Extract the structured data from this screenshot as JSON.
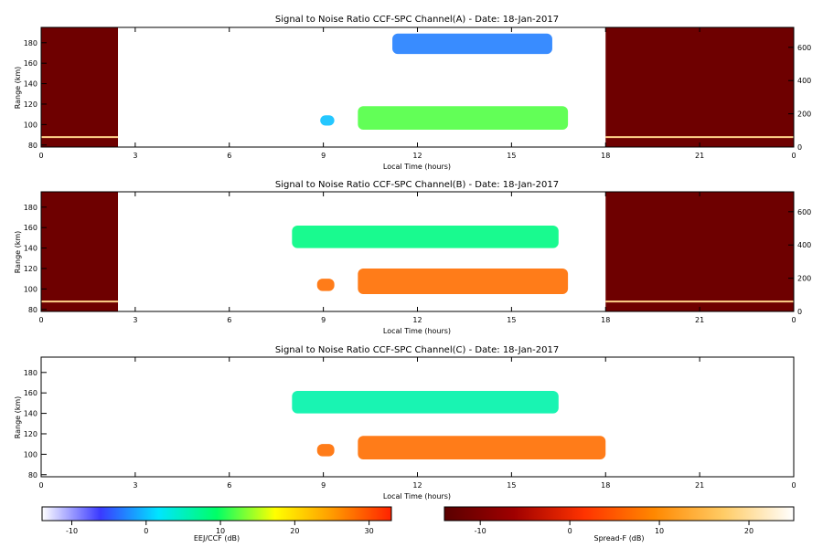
{
  "chart_data": [
    {
      "type": "heatmap",
      "title": "Signal to Noise Ratio CCF-SPC Channel(A) - Date: 18-Jan-2017",
      "xlabel": "Local Time (hours)",
      "ylabel": "Range (km)",
      "xlim": [
        0,
        24
      ],
      "ylim": [
        78,
        195
      ],
      "xticks": [
        "0",
        "3",
        "6",
        "9",
        "12",
        "15",
        "18",
        "21",
        "0"
      ],
      "yticks": [
        "80",
        "100",
        "120",
        "140",
        "160",
        "180"
      ],
      "y2lim": [
        0,
        720
      ],
      "y2ticks": [
        "0",
        "200",
        "400",
        "600"
      ],
      "spread_f_windows_hours": [
        [
          0,
          2.45
        ],
        [
          18,
          24
        ]
      ],
      "spread_f_echo_y2": 60,
      "features": [
        {
          "x": [
            8.9,
            9.35
          ],
          "y": [
            99,
            109
          ],
          "snr_db": 0
        },
        {
          "x": [
            10.1,
            16.8
          ],
          "y": [
            95,
            118
          ],
          "snr_db": 12
        },
        {
          "x": [
            11.2,
            16.3
          ],
          "y": [
            169,
            189
          ],
          "snr_db": -3
        }
      ]
    },
    {
      "type": "heatmap",
      "title": "Signal to Noise Ratio CCF-SPC Channel(B) - Date: 18-Jan-2017",
      "xlabel": "Local Time (hours)",
      "ylabel": "Range (km)",
      "xlim": [
        0,
        24
      ],
      "ylim": [
        78,
        195
      ],
      "xticks": [
        "0",
        "3",
        "6",
        "9",
        "12",
        "15",
        "18",
        "21",
        "0"
      ],
      "yticks": [
        "80",
        "100",
        "120",
        "140",
        "160",
        "180"
      ],
      "y2lim": [
        0,
        720
      ],
      "y2ticks": [
        "0",
        "200",
        "400",
        "600"
      ],
      "spread_f_windows_hours": [
        [
          0,
          2.45
        ],
        [
          18,
          24
        ]
      ],
      "spread_f_echo_y2": 60,
      "features": [
        {
          "x": [
            8.8,
            9.35
          ],
          "y": [
            98,
            110
          ],
          "snr_db": 28
        },
        {
          "x": [
            10.1,
            16.8
          ],
          "y": [
            95,
            120
          ],
          "snr_db": 28
        },
        {
          "x": [
            8.0,
            16.5
          ],
          "y": [
            140,
            162
          ],
          "snr_db": 8
        }
      ]
    },
    {
      "type": "heatmap",
      "title": "Signal to Noise Ratio CCF-SPC Channel(C) - Date: 18-Jan-2017",
      "xlabel": "Local Time (hours)",
      "ylabel": "Range (km)",
      "xlim": [
        0,
        24
      ],
      "ylim": [
        78,
        195
      ],
      "xticks": [
        "0",
        "3",
        "6",
        "9",
        "12",
        "15",
        "18",
        "21",
        "0"
      ],
      "yticks": [
        "80",
        "100",
        "120",
        "140",
        "160",
        "180"
      ],
      "features": [
        {
          "x": [
            8.8,
            9.35
          ],
          "y": [
            98,
            110
          ],
          "snr_db": 28
        },
        {
          "x": [
            10.1,
            18.0
          ],
          "y": [
            95,
            118
          ],
          "snr_db": 28
        },
        {
          "x": [
            8.0,
            16.5
          ],
          "y": [
            140,
            162
          ],
          "snr_db": 6
        }
      ]
    }
  ],
  "colorbars": [
    {
      "label": "EEJ/CCF (dB)",
      "ticks": [
        "-10",
        "0",
        "10",
        "20",
        "30"
      ],
      "range": [
        -14,
        33
      ],
      "colors": [
        "#ffffff",
        "#3a3aff",
        "#00e5ff",
        "#00ff66",
        "#ffff00",
        "#ff9900",
        "#ff2200"
      ]
    },
    {
      "label": "Spread-F (dB)",
      "ticks": [
        "-10",
        "0",
        "10",
        "20"
      ],
      "range": [
        -14,
        25
      ],
      "colors": [
        "#5a0000",
        "#a00000",
        "#ff3300",
        "#ff8800",
        "#ffcc66",
        "#ffffff"
      ]
    }
  ]
}
